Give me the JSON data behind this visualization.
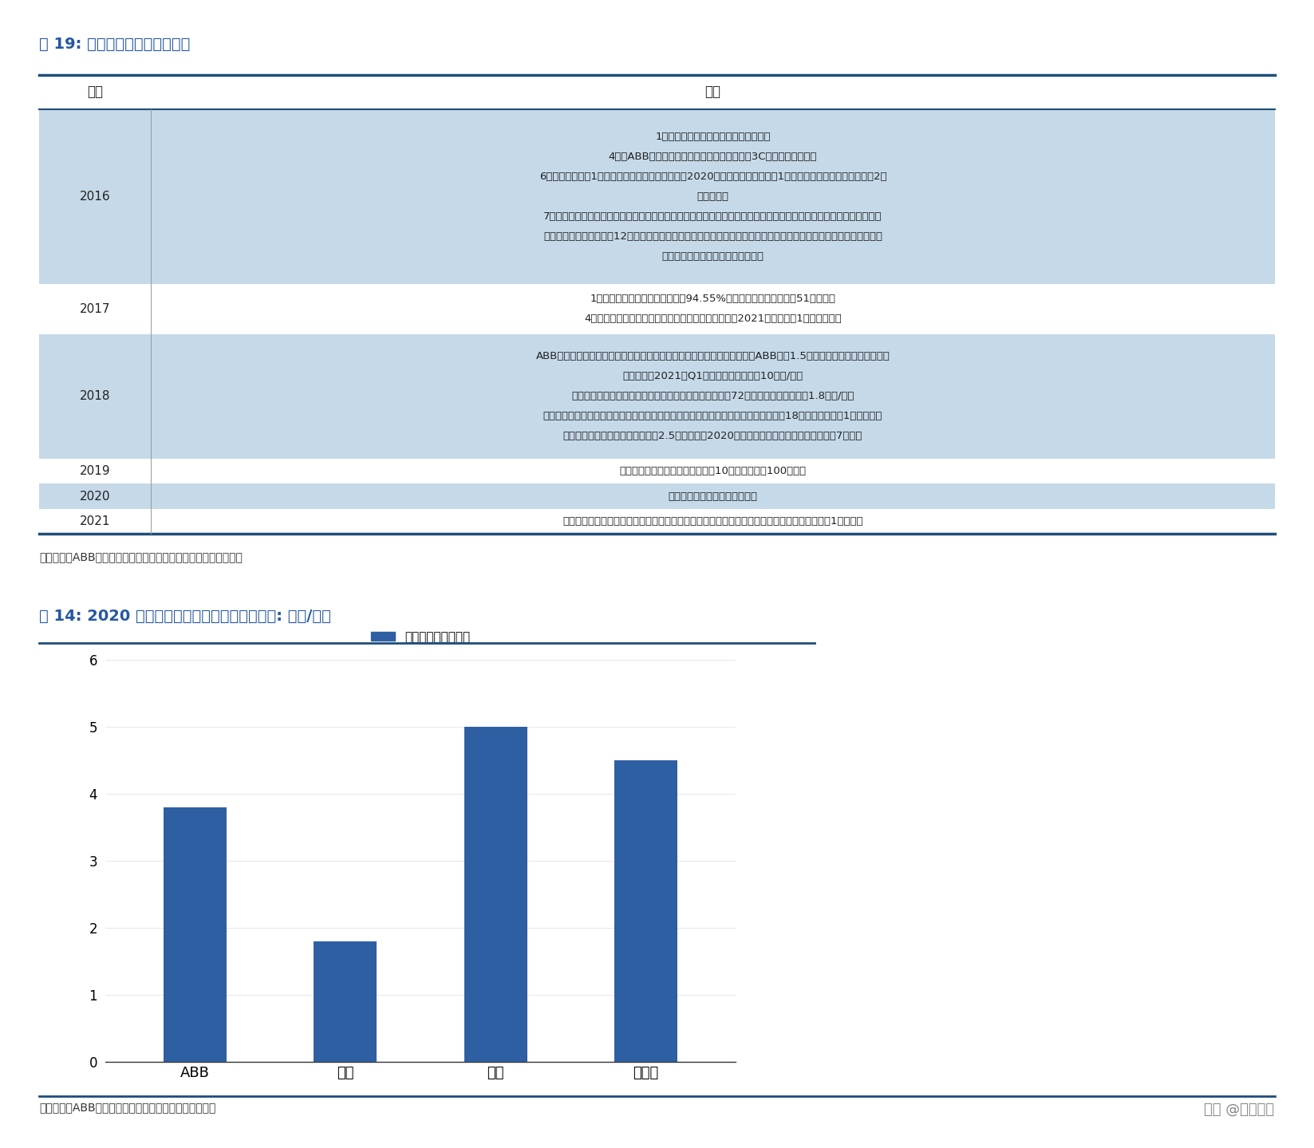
{
  "table_title": "表 19: 四大家族在国内扩产情况",
  "chart_title": "图 14: 2020 年四大家族在国内产能情况（单位: 万台/年）",
  "table_source": "资料来源：ABB、安川、发那科、库卡公司公告，民生证券研究院",
  "chart_source": "资料来源：ABB、安川、库卡公司公告，民生证券研究院",
  "watermark": "头条 @远瞻智库",
  "table_rows": [
    {
      "year": "2016",
      "event_lines": [
        "1月，安川电机新机器人中心落户成都；",
        "4月，ABB与拓斯达签订战略合作协议，进行在3C行业的深度合作；",
        "6月，发那科投资1亿元签约重庆技术中心项目，到2020年力争年产工业机器人1万台，服务机器人和特种机器人2万",
        "台的能力；",
        "7月，库卡与重庆长安工业集团成立合资公司，致力于开展机器人系统集成、机器人单元工程设计与装配、机器人展示、",
        "培训及售后服务等业务，12月，库卡与宁波海迈克达成战略合作协议，将在塑料、机械加工和压铸等行业开展合作，进",
        "一步推广工业机器人的自动化应用。"
      ],
      "shaded": true
    },
    {
      "year": "2017",
      "event_lines": [
        "1月，美的完成要约收购库卡集团94.55%的股份交割工作，共投资51亿美元；",
        "4月，安川电机与长盈精密正式签约成立合资公司，到2021年实现年产1万台的规模。"
      ],
      "shaded": false
    },
    {
      "year": "2018",
      "event_lines": [
        "ABB机器人应用中心落户重庆，成为继珠海和青岛之后的第三家应用中心；ABB投资1.5亿美元在上海建设机器人超级",
        "工厂，计划2021年Q1投入运营，最高产能10万台/年；",
        "安川（中国）机器人有限公司第三工厂在常州开业，占地72亩，三期工厂合计产能1.8万台/年；",
        "库卡上海第二家工厂投产，在顺德建设全球第二大制造工厂；库卡广东佛山工厂开工，18年底开始投产；1月，在上海",
        "投产第二家工厂，将年产能提升至2.5万台；截至2020年，上海和佛山两个工厂最高年产能7万台。"
      ],
      "shaded": true
    },
    {
      "year": "2019",
      "event_lines": [
        "发那科上海三期工程开工，投资超10亿元，产值达100亿元。"
      ],
      "shaded": false
    },
    {
      "year": "2020",
      "event_lines": [
        "发那科智能工厂三期正式开工。"
      ],
      "shaded": true
    },
    {
      "year": "2021",
      "event_lines": [
        "安川预计在常州开展集变频器、伺服电机、控制器等产品的研发和生产于一体新项目，投资超过1亿美元。"
      ],
      "shaded": false
    }
  ],
  "bar_categories": [
    "ABB",
    "安川",
    "库卡",
    "发那科"
  ],
  "bar_values": [
    3.8,
    1.8,
    5.0,
    4.5
  ],
  "bar_color": "#2E5FA3",
  "bar_ylim": [
    0,
    6
  ],
  "bar_yticks": [
    0,
    1,
    2,
    3,
    4,
    5,
    6
  ],
  "legend_label": "年产能（单位：万）",
  "title_color": "#2558A0",
  "shaded_bg": "#C5D9E8",
  "unshaded_bg": "#ffffff",
  "table_border_color": "#1F4E79",
  "background_color": "#ffffff",
  "source_text_color": "#333333",
  "row_line_counts": [
    7,
    2,
    5,
    1,
    1,
    1
  ]
}
